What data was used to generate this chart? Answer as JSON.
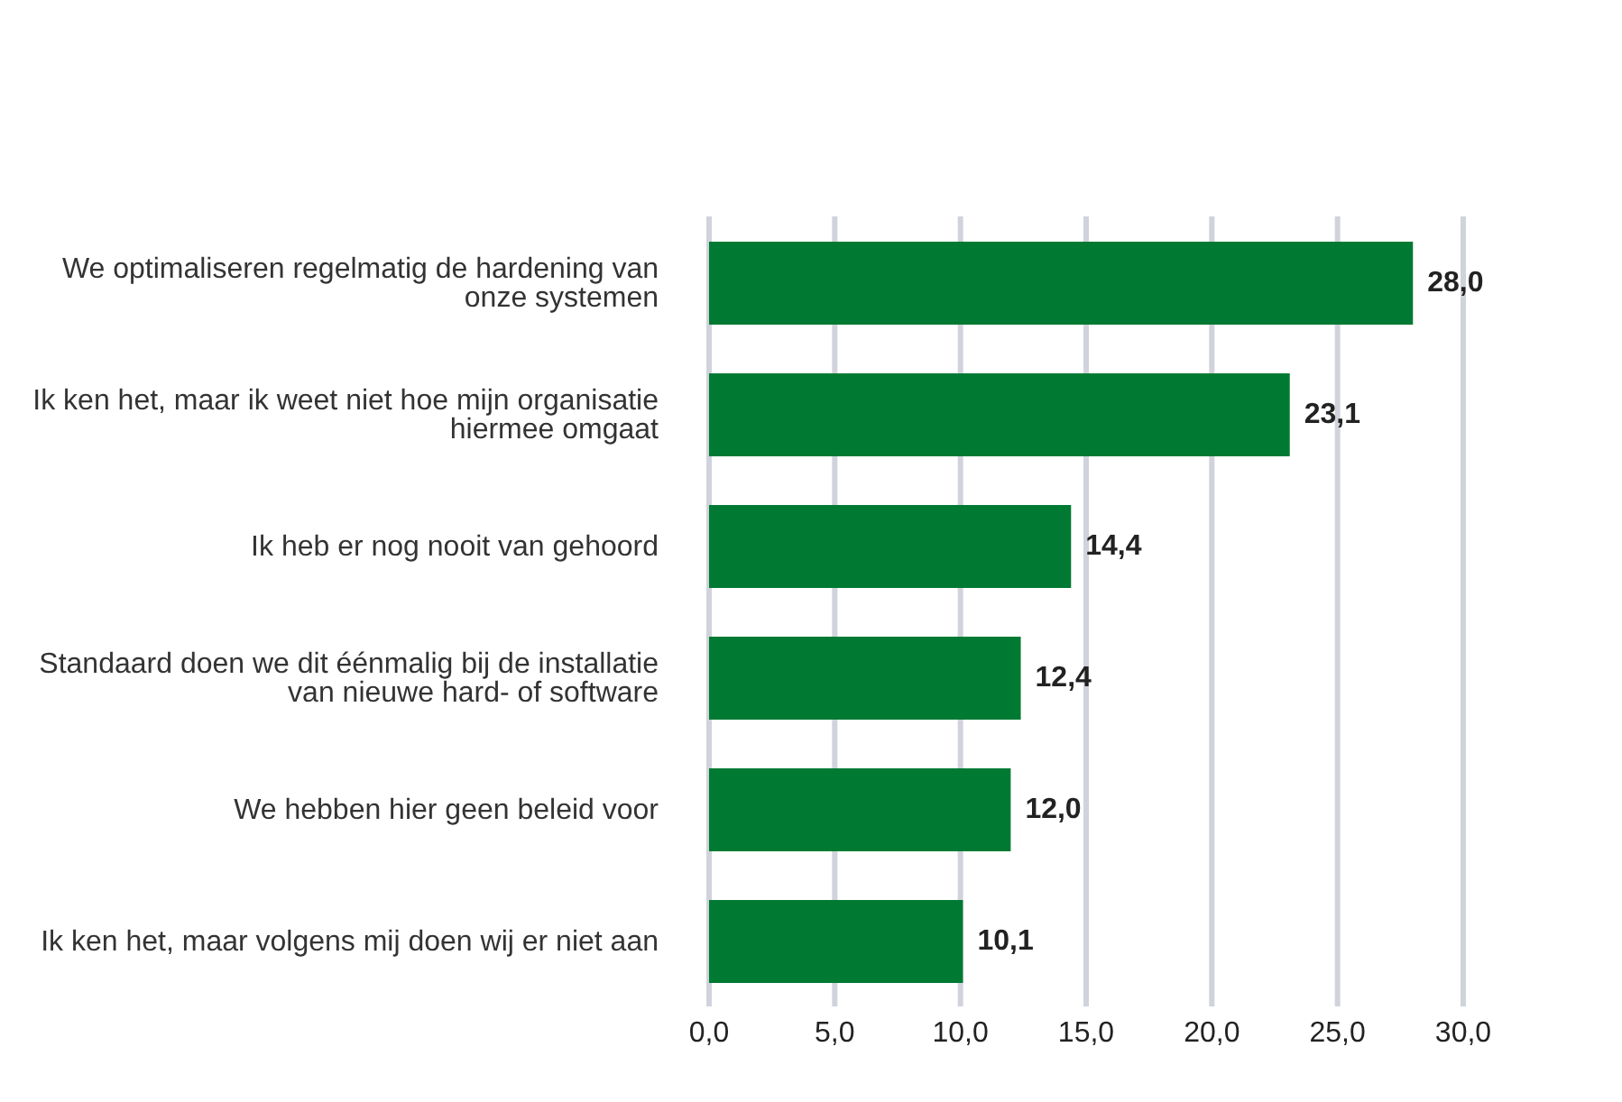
{
  "chart_data": {
    "type": "bar",
    "orientation": "horizontal",
    "categories": [
      "We optimaliseren regelmatig de hardening van onze systemen",
      "Ik ken het, maar ik weet niet hoe mijn organisatie hiermee omgaat",
      "Ik heb er nog nooit van gehoord",
      "Standaard doen we dit éénmalig bij de installatie van nieuwe hard- of software",
      "We hebben hier geen beleid voor",
      "Ik ken het, maar volgens mij doen wij er niet aan"
    ],
    "values": [
      28.0,
      23.1,
      14.4,
      12.4,
      12.0,
      10.1
    ],
    "color": "#007a33",
    "value_labels": [
      "28,0",
      "23,1",
      "14,4",
      "12,4",
      "12,0",
      "10,1"
    ],
    "grid": "x",
    "legend": false,
    "xlim": [
      0,
      30
    ],
    "xticks": [
      {
        "value": 0,
        "label": "0,0"
      },
      {
        "value": 5,
        "label": "5,0"
      },
      {
        "value": 10,
        "label": "10,0"
      },
      {
        "value": 15,
        "label": "15,0"
      },
      {
        "value": 20,
        "label": "20,0"
      },
      {
        "value": 25,
        "label": "25,0"
      },
      {
        "value": 30,
        "label": "30,0"
      }
    ]
  }
}
